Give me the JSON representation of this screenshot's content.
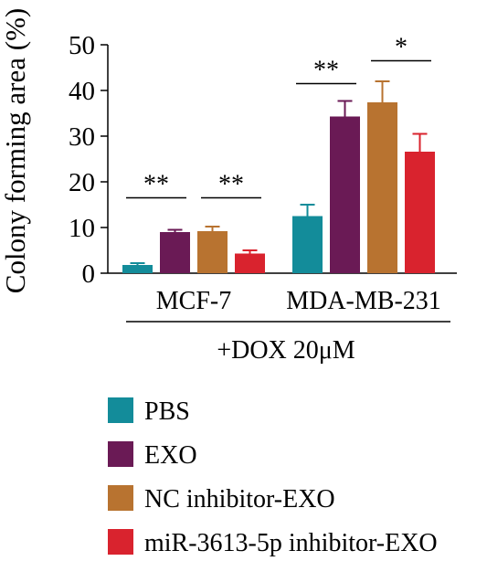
{
  "chart_data": {
    "type": "bar",
    "ylabel": "Colony forming area (%)",
    "ylim": [
      0,
      50
    ],
    "yticks": [
      0,
      10,
      20,
      30,
      40,
      50
    ],
    "groups": [
      "MCF-7",
      "MDA-MB-231"
    ],
    "group_caption": "+DOX 20μM",
    "series": [
      {
        "name": "PBS",
        "color": "#138c9a",
        "values": [
          1.8,
          12.5
        ],
        "errors": [
          0.4,
          2.5
        ]
      },
      {
        "name": "EXO",
        "color": "#6a1a55",
        "values": [
          9.0,
          34.3
        ],
        "errors": [
          0.5,
          3.4
        ]
      },
      {
        "name": "NC inhibitor-EXO",
        "color": "#b87330",
        "values": [
          9.2,
          37.4
        ],
        "errors": [
          1.0,
          4.6
        ]
      },
      {
        "name": "miR-3613-5p inhibitor-EXO",
        "color": "#d9232e",
        "values": [
          4.3,
          26.6
        ],
        "errors": [
          0.7,
          3.9
        ]
      }
    ],
    "significance": [
      {
        "group": 0,
        "from_series": 0,
        "to_series": 1,
        "label": "**",
        "y": 16.5
      },
      {
        "group": 0,
        "from_series": 2,
        "to_series": 3,
        "label": "**",
        "y": 16.5
      },
      {
        "group": 1,
        "from_series": 0,
        "to_series": 1,
        "label": "**",
        "y": 41.5
      },
      {
        "group": 1,
        "from_series": 2,
        "to_series": 3,
        "label": "*",
        "y": 46.5
      }
    ],
    "legend_position": "bottom-left",
    "grid": false
  }
}
